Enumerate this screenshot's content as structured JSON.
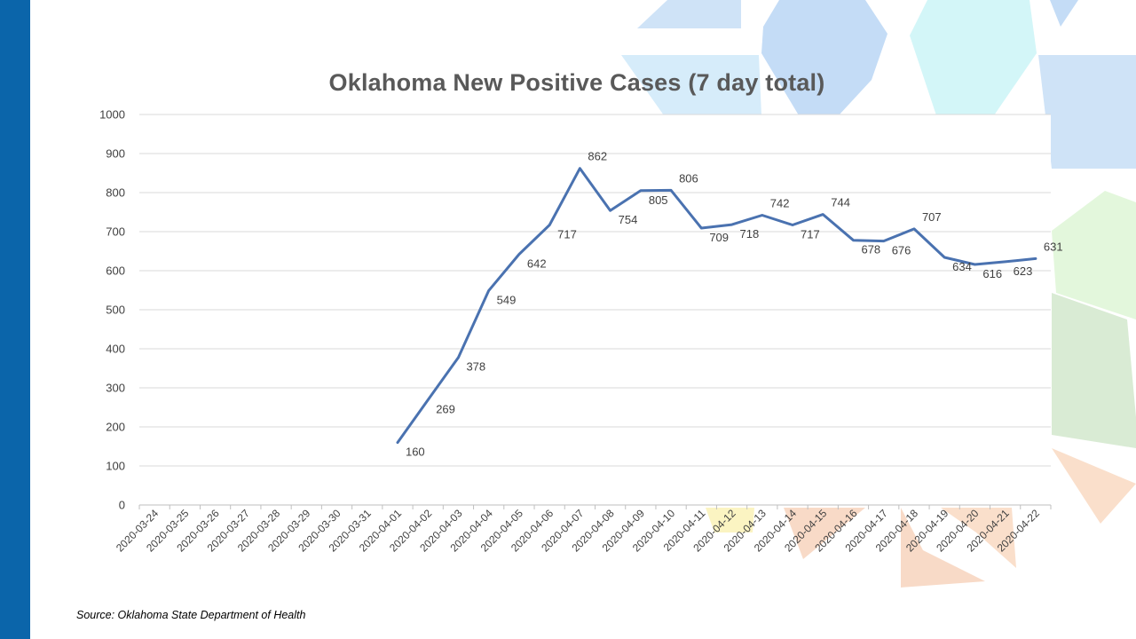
{
  "slide": {
    "source": "Source: Oklahoma State Department of Health",
    "accent_color": "#0b65aa"
  },
  "chart_data": {
    "type": "line",
    "title": "Oklahoma New Positive Cases (7 day total)",
    "xlabel": "",
    "ylabel": "",
    "ylim": [
      0,
      1000
    ],
    "yticks": [
      0,
      100,
      200,
      300,
      400,
      500,
      600,
      700,
      800,
      900,
      1000
    ],
    "grid": true,
    "legend": "none",
    "line_color": "#4a72b0",
    "categories": [
      "2020-03-24",
      "2020-03-25",
      "2020-03-26",
      "2020-03-27",
      "2020-03-28",
      "2020-03-29",
      "2020-03-30",
      "2020-03-31",
      "2020-04-01",
      "2020-04-02",
      "2020-04-03",
      "2020-04-04",
      "2020-04-05",
      "2020-04-06",
      "2020-04-07",
      "2020-04-08",
      "2020-04-09",
      "2020-04-10",
      "2020-04-11",
      "2020-04-12",
      "2020-04-13",
      "2020-04-14",
      "2020-04-15",
      "2020-04-16",
      "2020-04-17",
      "2020-04-18",
      "2020-04-19",
      "2020-04-20",
      "2020-04-21",
      "2020-04-22"
    ],
    "x": [
      "2020-04-01",
      "2020-04-02",
      "2020-04-03",
      "2020-04-04",
      "2020-04-05",
      "2020-04-06",
      "2020-04-07",
      "2020-04-08",
      "2020-04-09",
      "2020-04-10",
      "2020-04-11",
      "2020-04-12",
      "2020-04-13",
      "2020-04-14",
      "2020-04-15",
      "2020-04-16",
      "2020-04-17",
      "2020-04-18",
      "2020-04-19",
      "2020-04-20",
      "2020-04-21",
      "2020-04-22"
    ],
    "values": [
      160,
      269,
      378,
      549,
      642,
      717,
      862,
      754,
      805,
      806,
      709,
      718,
      742,
      717,
      744,
      678,
      676,
      707,
      634,
      616,
      623,
      631
    ]
  }
}
